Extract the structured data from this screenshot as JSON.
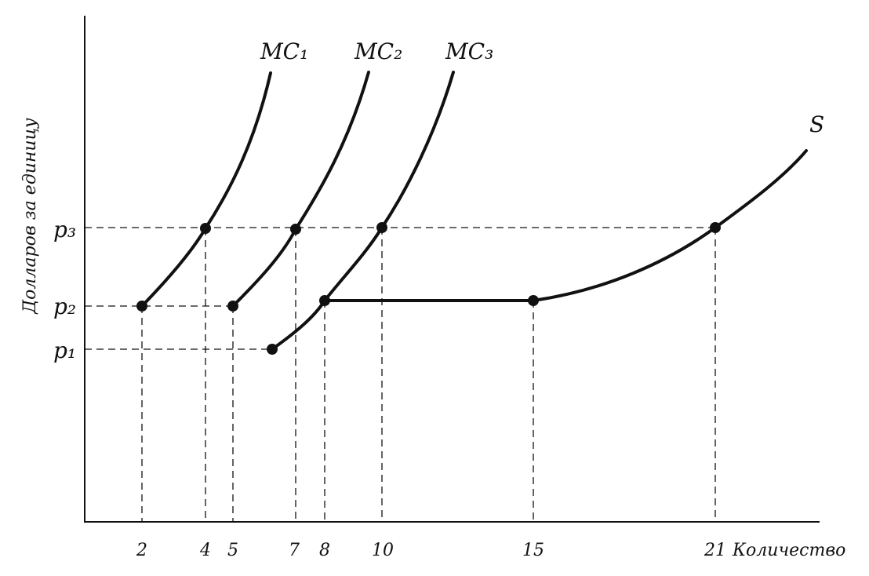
{
  "y_axis_label": "Долларов за единицу",
  "x_axis_label": "Количество",
  "curve_labels": [
    "MC₁",
    "MC₂",
    "MC₃",
    "S"
  ],
  "price_labels": [
    "p₃",
    "p₂",
    "p₁"
  ],
  "quantity_labels": [
    "2",
    "4",
    "5",
    "7",
    "8",
    "10",
    "15",
    "21"
  ]
}
